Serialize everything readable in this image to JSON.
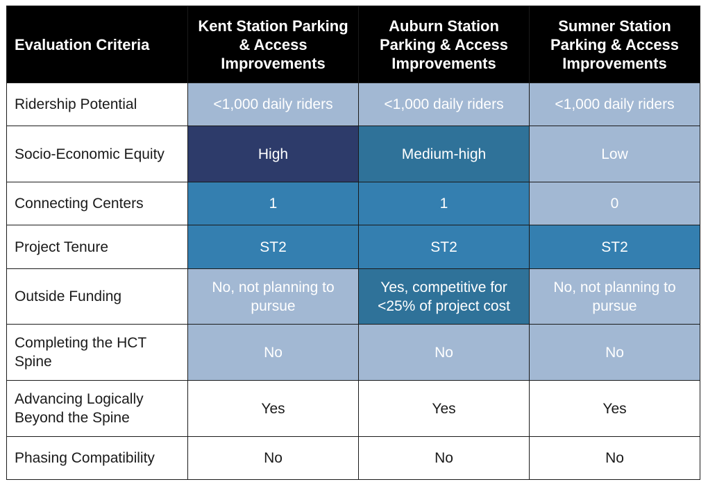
{
  "chart_data": {
    "type": "table",
    "columns": [
      "Evaluation Criteria",
      "Kent Station Parking & Access Improvements",
      "Auburn Station Parking & Access Improvements",
      "Sumner Station Parking & Access Improvements"
    ],
    "rows": [
      {
        "label": "Ridership Potential",
        "values": [
          "<1,000 daily riders",
          "<1,000 daily riders",
          "<1,000 daily riders"
        ],
        "fills": [
          "#a2b8d3",
          "#a2b8d3",
          "#a2b8d3"
        ],
        "text": [
          "#ffffff",
          "#ffffff",
          "#ffffff"
        ]
      },
      {
        "label": "Socio-Economic Equity",
        "values": [
          "High",
          "Medium-high",
          "Low"
        ],
        "fills": [
          "#2d3b6a",
          "#2f7299",
          "#a2b8d3"
        ],
        "text": [
          "#ffffff",
          "#ffffff",
          "#ffffff"
        ]
      },
      {
        "label": "Connecting Centers",
        "values": [
          "1",
          "1",
          "0"
        ],
        "fills": [
          "#347fb0",
          "#347fb0",
          "#a2b8d3"
        ],
        "text": [
          "#ffffff",
          "#ffffff",
          "#ffffff"
        ]
      },
      {
        "label": "Project Tenure",
        "values": [
          "ST2",
          "ST2",
          "ST2"
        ],
        "fills": [
          "#347fb0",
          "#347fb0",
          "#347fb0"
        ],
        "text": [
          "#ffffff",
          "#ffffff",
          "#ffffff"
        ]
      },
      {
        "label": "Outside Funding",
        "values": [
          "No, not planning to pursue",
          "Yes, competitive for <25% of project cost",
          "No, not planning to pursue"
        ],
        "fills": [
          "#a2b8d3",
          "#2f7299",
          "#a2b8d3"
        ],
        "text": [
          "#ffffff",
          "#ffffff",
          "#ffffff"
        ]
      },
      {
        "label": "Completing the HCT Spine",
        "values": [
          "No",
          "No",
          "No"
        ],
        "fills": [
          "#a2b8d3",
          "#a2b8d3",
          "#a2b8d3"
        ],
        "text": [
          "#ffffff",
          "#ffffff",
          "#ffffff"
        ]
      },
      {
        "label": "Advancing Logically Beyond the Spine",
        "values": [
          "Yes",
          "Yes",
          "Yes"
        ],
        "fills": [
          "#ffffff",
          "#ffffff",
          "#ffffff"
        ],
        "text": [
          "#1a1a1a",
          "#1a1a1a",
          "#1a1a1a"
        ]
      },
      {
        "label": "Phasing Compatibility",
        "values": [
          "No",
          "No",
          "No"
        ],
        "fills": [
          "#ffffff",
          "#ffffff",
          "#ffffff"
        ],
        "text": [
          "#1a1a1a",
          "#1a1a1a",
          "#1a1a1a"
        ]
      }
    ]
  }
}
